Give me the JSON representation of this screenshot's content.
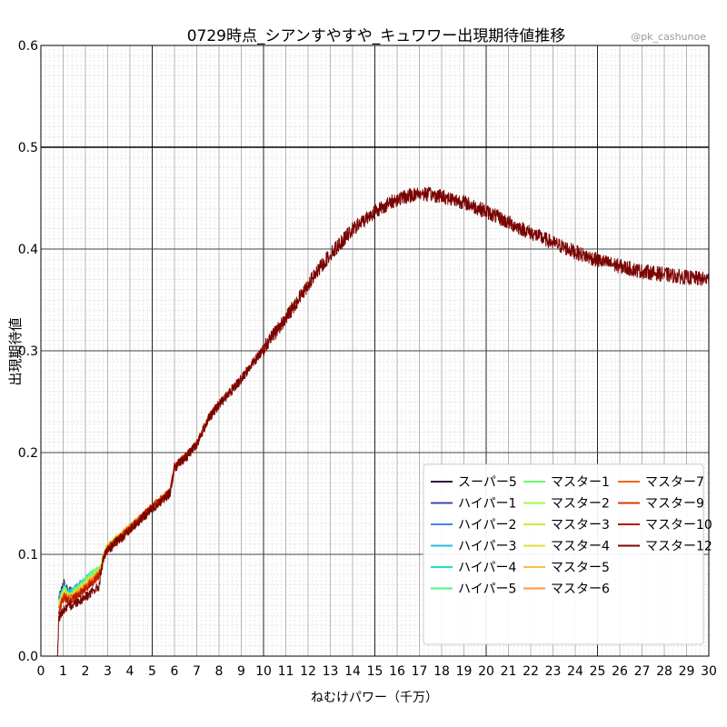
{
  "chart_data": {
    "type": "line",
    "title": "0729時点_シアンすやすや_キュワワー出現期待値推移",
    "watermark": "@pk_cashunoe",
    "xlabel": "ねむけパワー（千万）",
    "ylabel": "出現期待値",
    "xlim": [
      0,
      30
    ],
    "ylim": [
      0,
      0.6
    ],
    "x_ticks": [
      "0",
      "1",
      "2",
      "3",
      "4",
      "5",
      "6",
      "7",
      "8",
      "9",
      "10",
      "11",
      "12",
      "13",
      "14",
      "15",
      "16",
      "17",
      "18",
      "19",
      "20",
      "21",
      "22",
      "23",
      "24",
      "25",
      "26",
      "27",
      "28",
      "29",
      "30"
    ],
    "y_ticks": [
      "0.0",
      "0.1",
      "0.2",
      "0.3",
      "0.4",
      "0.5",
      "0.6"
    ],
    "grid": true,
    "legend_position": "bottom-right",
    "legend_columns": 3,
    "series": [
      {
        "name": "スーパー5",
        "color": "#30123b",
        "x_range": [
          0.8,
          1.4
        ]
      },
      {
        "name": "ハイパー1",
        "color": "#3e4aa8",
        "x_range": [
          0.8,
          1.6
        ]
      },
      {
        "name": "ハイパー2",
        "color": "#4681f7",
        "x_range": [
          0.8,
          1.8
        ]
      },
      {
        "name": "ハイパー3",
        "color": "#26bce1",
        "x_range": [
          0.8,
          2.0
        ]
      },
      {
        "name": "ハイパー4",
        "color": "#1ae4b6",
        "x_range": [
          0.8,
          2.3
        ]
      },
      {
        "name": "ハイパー5",
        "color": "#46f884",
        "x_range": [
          0.8,
          2.5
        ]
      },
      {
        "name": "マスター1",
        "color": "#64fd6a",
        "x_range": [
          0.8,
          3.0
        ]
      },
      {
        "name": "マスター2",
        "color": "#a4fc3c",
        "x_range": [
          0.8,
          3.3
        ]
      },
      {
        "name": "マスター3",
        "color": "#c6f034",
        "x_range": [
          0.8,
          3.6
        ]
      },
      {
        "name": "マスター4",
        "color": "#e1dd37",
        "x_range": [
          0.8,
          4.0
        ]
      },
      {
        "name": "マスター5",
        "color": "#f6c33a",
        "x_range": [
          0.8,
          4.5
        ]
      },
      {
        "name": "マスター6",
        "color": "#fe9b2d",
        "x_range": [
          0.8,
          5.5
        ]
      },
      {
        "name": "マスター7",
        "color": "#f36315",
        "x_range": [
          0.8,
          6.5
        ]
      },
      {
        "name": "マスター9",
        "color": "#d93806",
        "x_range": [
          0.8,
          8.0
        ]
      },
      {
        "name": "マスター10",
        "color": "#b11901",
        "x_range": [
          0.8,
          12.0
        ]
      },
      {
        "name": "マスター12",
        "color": "#7a0403",
        "x_range": [
          0.0,
          30.0
        ]
      }
    ],
    "main_curve_points": [
      [
        0,
        0.0
      ],
      [
        0.75,
        0.0
      ],
      [
        0.8,
        0.038
      ],
      [
        1.0,
        0.045
      ],
      [
        1.5,
        0.052
      ],
      [
        2.0,
        0.058
      ],
      [
        2.6,
        0.068
      ],
      [
        2.8,
        0.095
      ],
      [
        3.0,
        0.104
      ],
      [
        4.0,
        0.124
      ],
      [
        5.0,
        0.145
      ],
      [
        5.8,
        0.16
      ],
      [
        6.0,
        0.185
      ],
      [
        6.5,
        0.195
      ],
      [
        7.0,
        0.208
      ],
      [
        7.5,
        0.232
      ],
      [
        8.0,
        0.247
      ],
      [
        9.0,
        0.272
      ],
      [
        10.0,
        0.302
      ],
      [
        11.0,
        0.332
      ],
      [
        12.0,
        0.365
      ],
      [
        13.0,
        0.395
      ],
      [
        14.0,
        0.419
      ],
      [
        15.0,
        0.437
      ],
      [
        16.0,
        0.449
      ],
      [
        17.0,
        0.455
      ],
      [
        18.0,
        0.452
      ],
      [
        19.0,
        0.446
      ],
      [
        20.0,
        0.437
      ],
      [
        21.0,
        0.426
      ],
      [
        22.0,
        0.416
      ],
      [
        23.0,
        0.406
      ],
      [
        24.0,
        0.397
      ],
      [
        25.0,
        0.389
      ],
      [
        26.0,
        0.383
      ],
      [
        27.0,
        0.378
      ],
      [
        28.0,
        0.375
      ],
      [
        29.0,
        0.372
      ],
      [
        30.0,
        0.37
      ]
    ],
    "early_bump_points": [
      [
        0.8,
        0.05
      ],
      [
        1.05,
        0.066
      ],
      [
        1.2,
        0.058
      ],
      [
        1.5,
        0.06
      ],
      [
        2.0,
        0.072
      ],
      [
        2.6,
        0.085
      ]
    ],
    "noise_amplitude": 0.012
  }
}
